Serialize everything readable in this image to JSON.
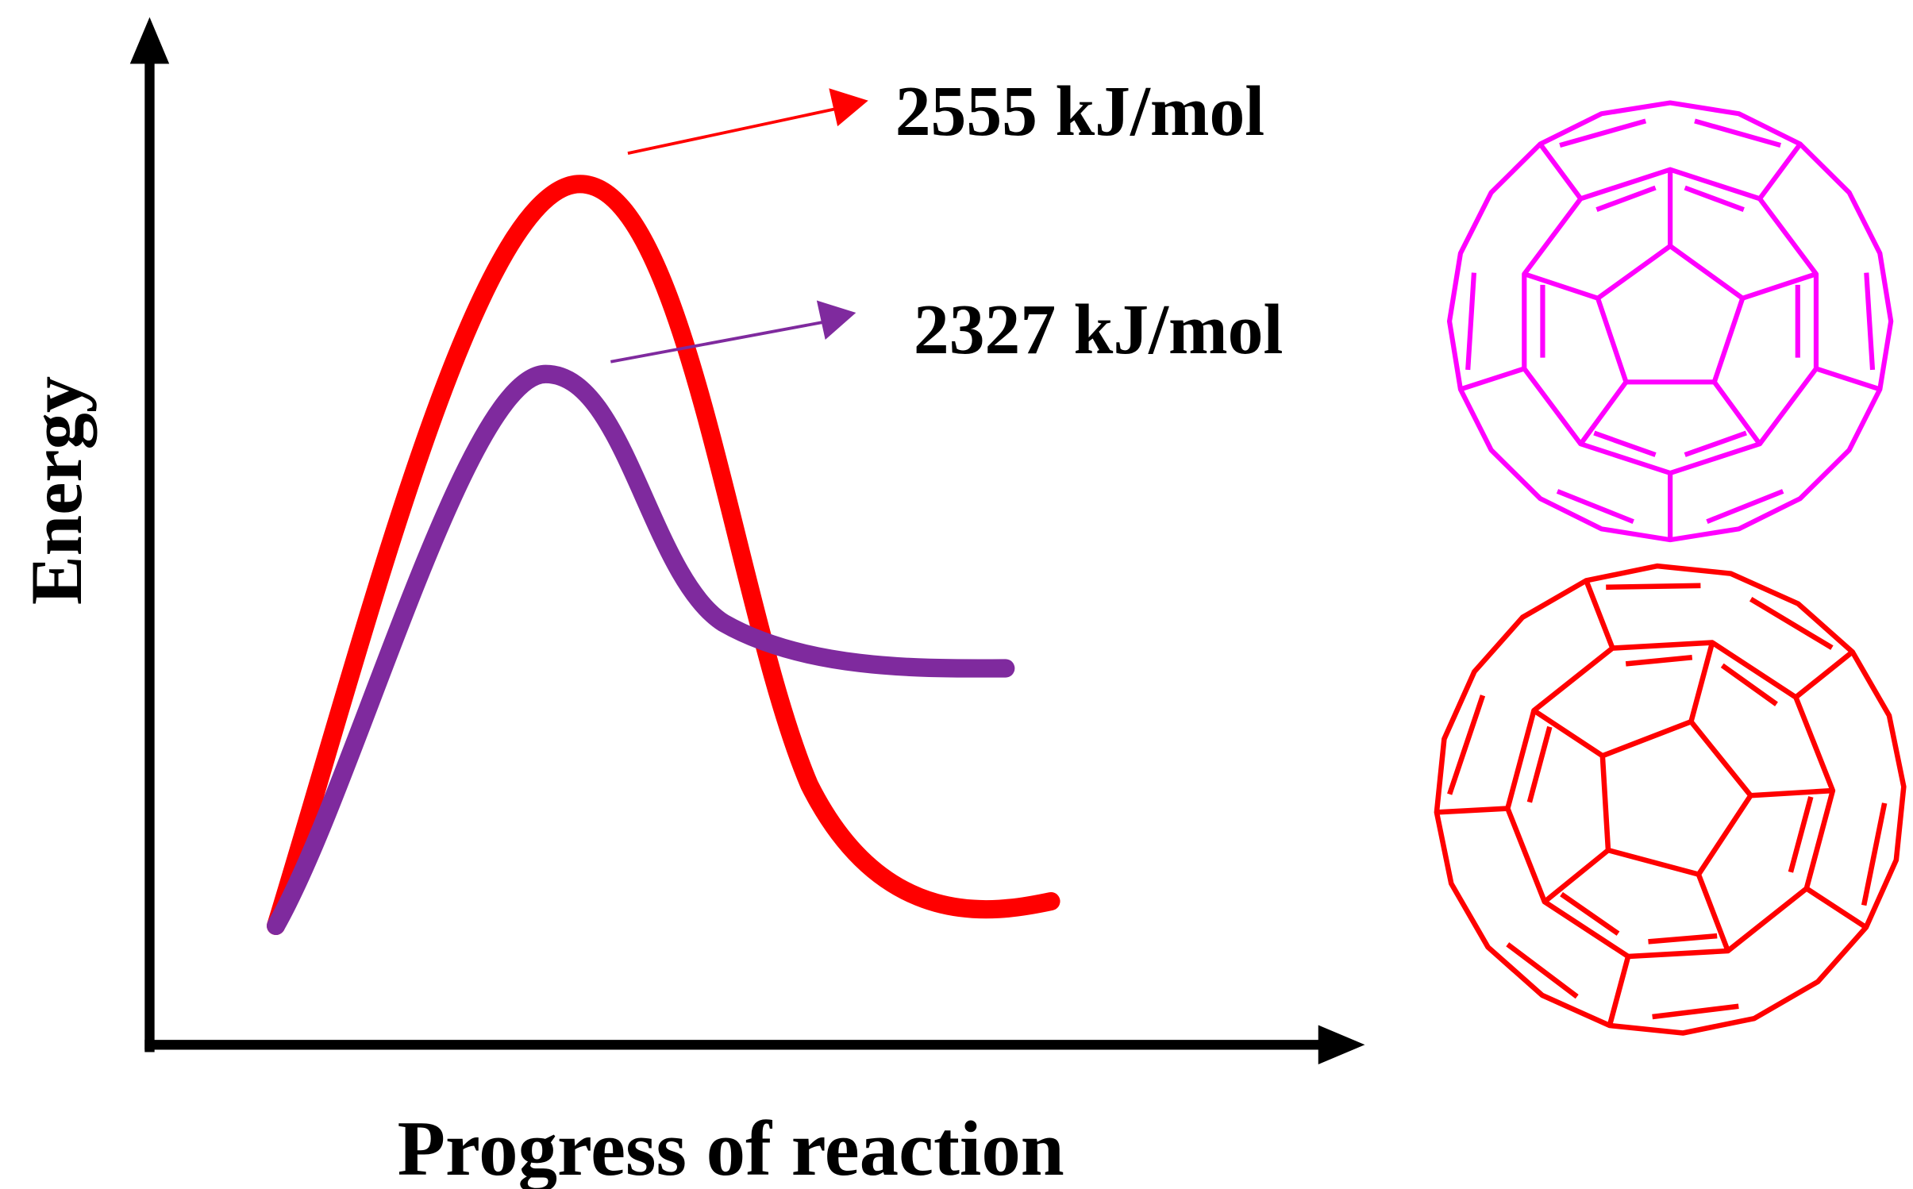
{
  "axes": {
    "y_label": "Energy",
    "x_label": "Progress of reaction"
  },
  "annotations": [
    "2555 kJ/mol",
    "2327 kJ/mol"
  ]
}
